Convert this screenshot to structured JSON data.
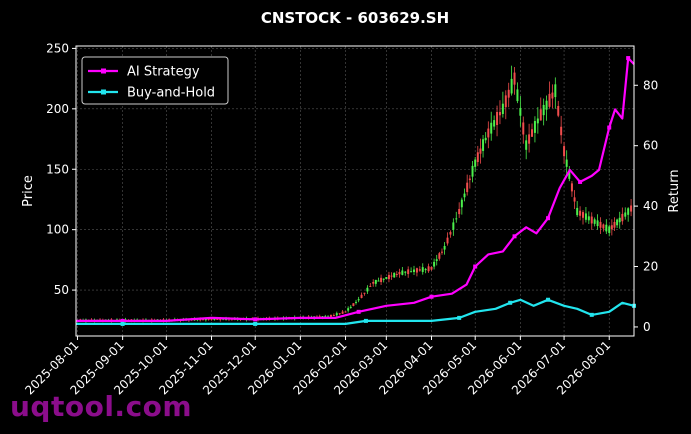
{
  "chart_data": {
    "type": "line",
    "title": "CNSTOCK - 603629.SH",
    "xlabel": "",
    "ylabel_left": "Price",
    "ylabel_right": "Return",
    "ylim_left": [
      12,
      252
    ],
    "ylim_right": [
      -3,
      93
    ],
    "yticks_left": [
      50,
      100,
      150,
      200,
      250
    ],
    "yticks_right": [
      0,
      20,
      40,
      60,
      80
    ],
    "xlim": [
      "2025-07-31",
      "2026-08-18"
    ],
    "x_tick_labels": [
      "2025-08-01",
      "2025-09-01",
      "2025-10-01",
      "2025-11-01",
      "2025-12-01",
      "2026-01-01",
      "2026-02-01",
      "2026-03-01",
      "2026-04-01",
      "2026-05-01",
      "2026-06-01",
      "2026-07-01",
      "2026-08-01"
    ],
    "grid": true,
    "legend": {
      "placement": "top-left",
      "entries": [
        "AI Strategy",
        "Buy-and-Hold"
      ]
    },
    "colors": {
      "ai_strategy": "#ff00ff",
      "buy_hold": "#22e5ee",
      "candle_up": "#4cf04c",
      "candle_down": "#f04c4c"
    },
    "candles_close": {
      "x": [
        "2025-08-01",
        "2025-09-01",
        "2025-10-01",
        "2025-11-01",
        "2025-12-01",
        "2026-01-01",
        "2026-01-20",
        "2026-02-01",
        "2026-02-10",
        "2026-02-20",
        "2026-03-01",
        "2026-03-10",
        "2026-03-20",
        "2026-04-01",
        "2026-04-10",
        "2026-04-20",
        "2026-05-01",
        "2026-05-10",
        "2026-05-20",
        "2026-05-28",
        "2026-06-05",
        "2026-06-15",
        "2026-06-25",
        "2026-07-01",
        "2026-07-10",
        "2026-07-20",
        "2026-08-01",
        "2026-08-10",
        "2026-08-18"
      ],
      "values": [
        25,
        25,
        25,
        26,
        26,
        27,
        28,
        32,
        42,
        56,
        60,
        64,
        66,
        68,
        85,
        115,
        155,
        180,
        200,
        225,
        170,
        195,
        215,
        165,
        115,
        108,
        100,
        110,
        120
      ]
    },
    "series": [
      {
        "name": "AI Strategy",
        "x": [
          "2025-07-31",
          "2025-09-01",
          "2025-10-01",
          "2025-11-01",
          "2025-12-01",
          "2026-01-01",
          "2026-01-25",
          "2026-02-10",
          "2026-03-01",
          "2026-03-20",
          "2026-04-01",
          "2026-04-15",
          "2026-04-25",
          "2026-05-01",
          "2026-05-10",
          "2026-05-20",
          "2026-05-28",
          "2026-06-05",
          "2026-06-12",
          "2026-06-20",
          "2026-06-28",
          "2026-07-05",
          "2026-07-12",
          "2026-07-20",
          "2026-07-25",
          "2026-08-01",
          "2026-08-05",
          "2026-08-10",
          "2026-08-14",
          "2026-08-18"
        ],
        "values": [
          2,
          2,
          2,
          3,
          2.5,
          3,
          3,
          5,
          7,
          8,
          10,
          11,
          14,
          20,
          24,
          25,
          30,
          33,
          31,
          36,
          46,
          52,
          48,
          50,
          52,
          66,
          72,
          69,
          89,
          87
        ]
      },
      {
        "name": "Buy-and-Hold",
        "x": [
          "2025-07-31",
          "2025-09-01",
          "2025-10-01",
          "2025-11-01",
          "2025-12-01",
          "2026-01-01",
          "2026-02-01",
          "2026-02-15",
          "2026-03-01",
          "2026-04-01",
          "2026-04-20",
          "2026-05-01",
          "2026-05-15",
          "2026-05-25",
          "2026-06-01",
          "2026-06-10",
          "2026-06-20",
          "2026-07-01",
          "2026-07-10",
          "2026-07-20",
          "2026-08-01",
          "2026-08-10",
          "2026-08-18"
        ],
        "values": [
          1,
          1,
          1,
          1,
          1,
          1,
          1,
          2,
          2,
          2,
          3,
          5,
          6,
          8,
          9,
          7,
          9,
          7,
          6,
          4,
          5,
          8,
          7
        ]
      }
    ]
  },
  "watermark": "uqtool.com"
}
